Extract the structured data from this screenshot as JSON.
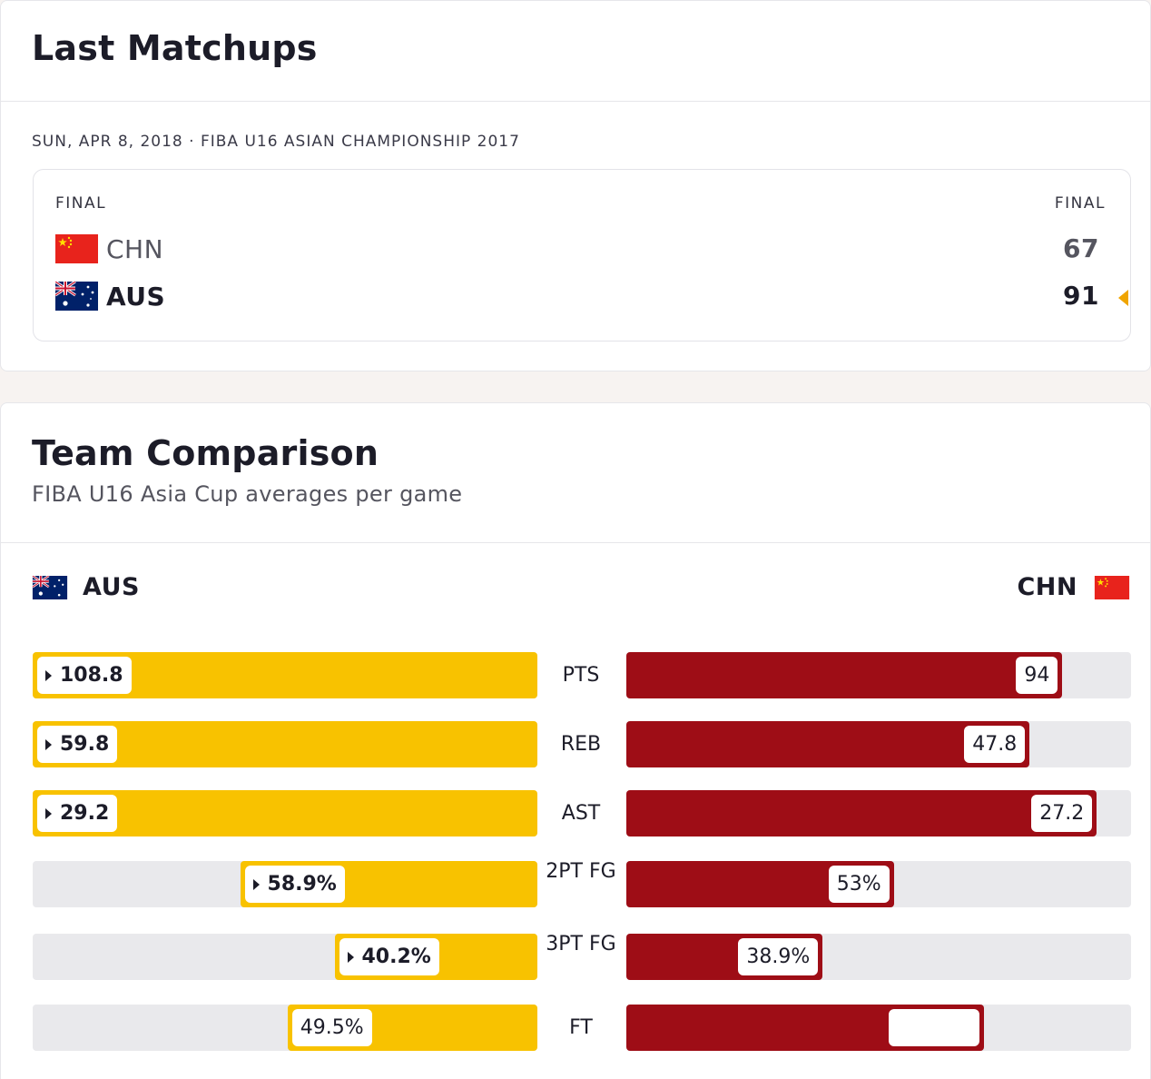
{
  "last_matchups": {
    "title": "Last Matchups",
    "game_meta": "SUN, APR 8, 2018 · FIBA U16 ASIAN CHAMPIONSHIP 2017",
    "status_left": "FINAL",
    "status_right": "FINAL",
    "teams": [
      {
        "abbr": "CHN",
        "score": "67",
        "flag": "china-flag",
        "winner": false
      },
      {
        "abbr": "AUS",
        "score": "91",
        "flag": "australia-flag",
        "winner": true
      }
    ]
  },
  "team_comparison": {
    "title": "Team Comparison",
    "subtitle": "FIBA U16 Asia Cup averages per game",
    "left_team": "AUS",
    "right_team": "CHN",
    "colors": {
      "aus": "#f8c200",
      "chn": "#9e0d16",
      "track": "#e9e9ec"
    },
    "stats": [
      {
        "label": "PTS",
        "aus": "108.8",
        "chn": "94",
        "aus_fraction": 1.0,
        "chn_fraction": 0.864,
        "leader": "aus"
      },
      {
        "label": "REB",
        "aus": "59.8",
        "chn": "47.8",
        "aus_fraction": 1.0,
        "chn_fraction": 0.799,
        "leader": "aus"
      },
      {
        "label": "AST",
        "aus": "29.2",
        "chn": "27.2",
        "aus_fraction": 1.0,
        "chn_fraction": 0.932,
        "leader": "aus"
      },
      {
        "label": "2PT FG",
        "aus": "58.9%",
        "chn": "53%",
        "aus_fraction": 0.589,
        "chn_fraction": 0.53,
        "leader": "aus"
      },
      {
        "label": "3PT FG",
        "aus": "40.2%",
        "chn": "38.9%",
        "aus_fraction": 0.402,
        "chn_fraction": 0.389,
        "leader": "aus"
      },
      {
        "label": "FT",
        "aus": "49.5%",
        "chn": "",
        "aus_fraction": 0.495,
        "chn_fraction": 0.708,
        "leader": "none"
      }
    ]
  }
}
